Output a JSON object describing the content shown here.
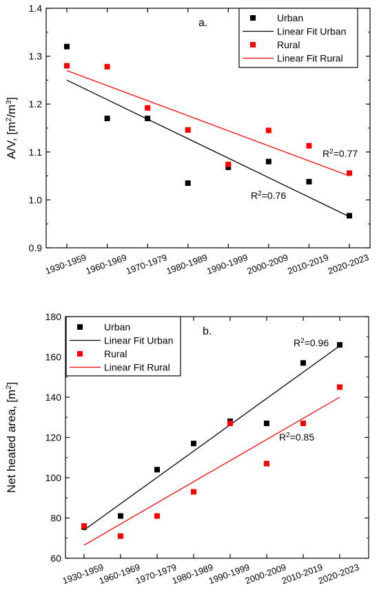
{
  "chart_data": [
    {
      "type": "scatter",
      "panel_label": "a.",
      "categories": [
        "1930-1959",
        "1960-1969",
        "1970-1979",
        "1980-1989",
        "1990-1999",
        "2000-2009",
        "2010-2019",
        "2020-2023"
      ],
      "ylabel": "A/V, [m²/m³]",
      "ylabel_parts": {
        "main": "A/V, [m",
        "sup1": "2",
        "mid": "/m",
        "sup2": "3",
        "end": "]"
      },
      "ylim": [
        0.9,
        1.4
      ],
      "yticks": [
        0.9,
        1.0,
        1.1,
        1.2,
        1.3,
        1.4
      ],
      "ytick_labels": [
        "0.9",
        "1.0",
        "1.1",
        "1.2",
        "1.3",
        "1.4"
      ],
      "series": [
        {
          "name": "Urban",
          "color": "#000000",
          "values": [
            1.32,
            1.17,
            1.17,
            1.035,
            1.068,
            1.08,
            1.038,
            0.967
          ]
        },
        {
          "name": "Rural",
          "color": "#ff0000",
          "values": [
            1.28,
            1.278,
            1.192,
            1.146,
            1.074,
            1.145,
            1.113,
            1.056
          ]
        }
      ],
      "fits": [
        {
          "name": "Linear Fit Urban",
          "color": "#000000",
          "start": 1.25,
          "end": 0.965,
          "r2_label": "R²=0.76",
          "r2_base": "R",
          "r2_sup": "2",
          "r2_rest": "=0.76"
        },
        {
          "name": "Linear Fit Rural",
          "color": "#ff0000",
          "start": 1.27,
          "end": 1.05,
          "r2_label": "R²=0.77",
          "r2_base": "R",
          "r2_sup": "2",
          "r2_rest": "=0.77"
        }
      ],
      "legend_placement": "top-right",
      "legend": [
        "Urban",
        "Linear Fit Urban",
        "Rural",
        "Linear Fit Rural"
      ]
    },
    {
      "type": "scatter",
      "panel_label": "b.",
      "categories": [
        "1930-1959",
        "1960-1969",
        "1970-1979",
        "1980-1989",
        "1990-1999",
        "2000-2009",
        "2010-2019",
        "2020-2023"
      ],
      "ylabel": "Net heated area, [m²]",
      "ylabel_parts": {
        "main": "Net heated area, [m",
        "sup1": "2",
        "end": "]"
      },
      "ylim": [
        60,
        180
      ],
      "yticks": [
        60,
        80,
        100,
        120,
        140,
        160,
        180
      ],
      "ytick_labels": [
        "60",
        "80",
        "100",
        "120",
        "140",
        "160",
        "180"
      ],
      "series": [
        {
          "name": "Urban",
          "color": "#000000",
          "values": [
            75.5,
            81,
            104,
            117,
            128,
            127,
            157,
            166
          ]
        },
        {
          "name": "Rural",
          "color": "#ff0000",
          "values": [
            76,
            71,
            81,
            93,
            127,
            107,
            127,
            145
          ]
        }
      ],
      "fits": [
        {
          "name": "Linear Fit Urban",
          "color": "#000000",
          "start": 74,
          "end": 165.5,
          "r2_label": "R²=0.96",
          "r2_base": "R",
          "r2_sup": "2",
          "r2_rest": "=0.96"
        },
        {
          "name": "Linear Fit Rural",
          "color": "#ff0000",
          "start": 66.5,
          "end": 140,
          "r2_label": "R²=0.85",
          "r2_base": "R",
          "r2_sup": "2",
          "r2_rest": "=0.85"
        }
      ],
      "legend_placement": "top-left",
      "legend": [
        "Urban",
        "Linear Fit Urban",
        "Rural",
        "Linear Fit Rural"
      ]
    }
  ]
}
